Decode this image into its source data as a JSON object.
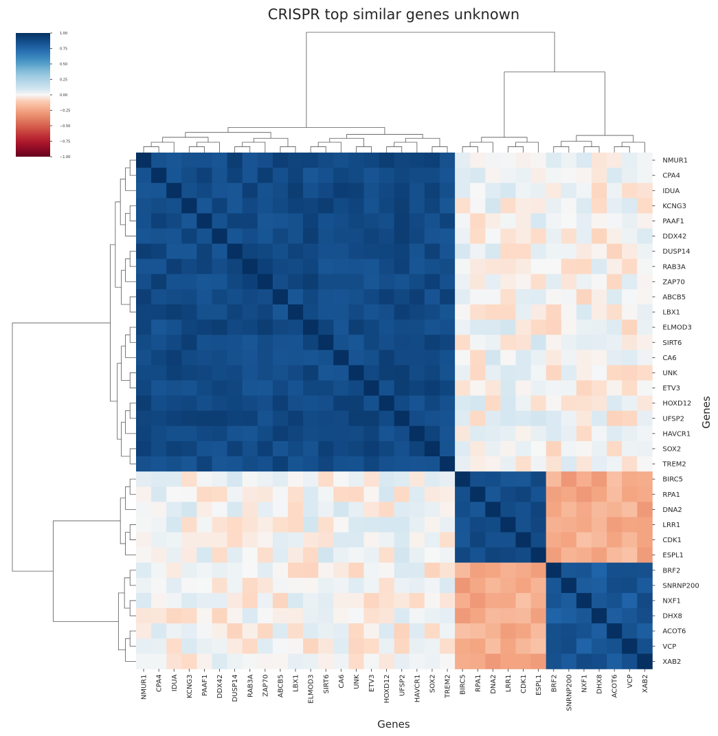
{
  "chart_data": {
    "type": "heatmap",
    "title": "CRISPR top similar genes unknown",
    "xlabel": "Genes",
    "ylabel": "Genes",
    "colormap": "RdBu",
    "vmin": -1.0,
    "vmax": 1.0,
    "colorbar_ticks": [
      "1.00",
      "0.75",
      "0.50",
      "0.25",
      "0.00",
      "−0.25",
      "−0.50",
      "−0.75",
      "−1.00"
    ],
    "genes": [
      "NMUR1",
      "CPA4",
      "IDUA",
      "KCNG3",
      "PAAF1",
      "DDX42",
      "DUSP14",
      "RAB3A",
      "ZAP70",
      "ABCB5",
      "LBX1",
      "ELMOD3",
      "SIRT6",
      "CA6",
      "UNK",
      "ETV3",
      "HOXD12",
      "UFSP2",
      "HAVCR1",
      "SOX2",
      "TREM2",
      "BIRC5",
      "RPA1",
      "DNA2",
      "LRR1",
      "CDK1",
      "ESPL1",
      "BRF2",
      "SNRNP200",
      "NXF1",
      "DHX8",
      "ACOT6",
      "VCP",
      "XAB2"
    ],
    "clusters": {
      "A": {
        "start": 0,
        "end": 21,
        "within": 0.88,
        "diag": 1.0
      },
      "B": {
        "start": 21,
        "end": 27,
        "within": 0.85,
        "diag": 1.0
      },
      "C": {
        "start": 27,
        "end": 34,
        "within": 0.82,
        "diag": 1.0
      },
      "between": {
        "A-B": 0.02,
        "A-C": 0.0,
        "B-C": -0.22
      }
    }
  }
}
